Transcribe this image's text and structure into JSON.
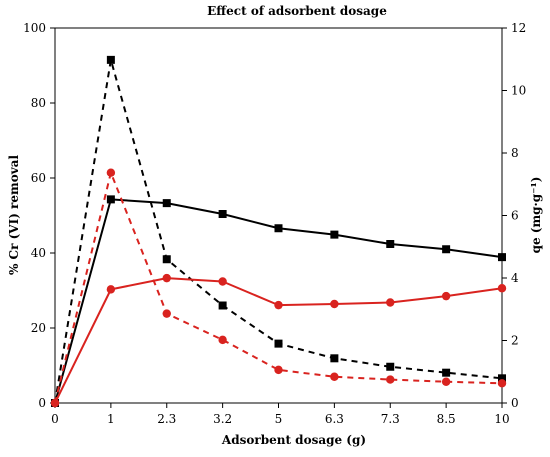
{
  "chart_data": {
    "type": "line",
    "title": "Effect of adsorbent dosage",
    "xlabel": "Adsorbent dosage (g)",
    "ylabel_left": "% Cr (VI) removal",
    "ylabel_right": "qe (mg·g⁻¹)",
    "categories": [
      "0",
      "1",
      "2.3",
      "3.2",
      "5",
      "6.3",
      "7.3",
      "8.5",
      "10"
    ],
    "ylim_left": [
      0,
      100
    ],
    "yticks_left": [
      0,
      20,
      40,
      60,
      80,
      100
    ],
    "ylim_right": [
      0,
      12
    ],
    "yticks_right": [
      0,
      2,
      4,
      6,
      8,
      10,
      12
    ],
    "grid": false,
    "legend": "none",
    "series": [
      {
        "axis": "left",
        "color": "#000000",
        "line": "solid",
        "marker": "square",
        "values": [
          0,
          54.3,
          53.3,
          50.4,
          46.6,
          44.9,
          42.4,
          41.0,
          38.9
        ]
      },
      {
        "axis": "right",
        "color": "#000000",
        "line": "dashed",
        "marker": "square",
        "values": [
          0,
          10.98,
          4.6,
          3.12,
          1.9,
          1.43,
          1.16,
          0.97,
          0.79
        ]
      },
      {
        "axis": "left",
        "color": "#d9231f",
        "line": "solid",
        "marker": "circle",
        "values": [
          0,
          30.3,
          33.3,
          32.4,
          26.1,
          26.4,
          26.8,
          28.5,
          30.6
        ]
      },
      {
        "axis": "right",
        "color": "#d9231f",
        "line": "dashed",
        "marker": "circle",
        "values": [
          0,
          7.37,
          2.86,
          2.02,
          1.06,
          0.84,
          0.75,
          0.68,
          0.63
        ]
      }
    ]
  }
}
